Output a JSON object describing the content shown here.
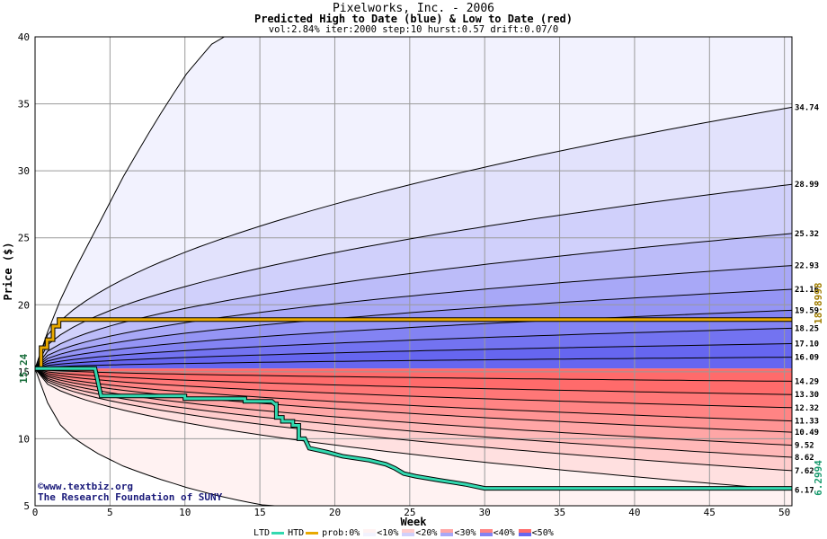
{
  "chart_data": {
    "type": "area",
    "title": "Pixelworks, Inc. - 2006",
    "subtitle": "Predicted High to Date (blue) &  Low to Date (red)",
    "params": "vol:2.84% iter:2000 step:10 hurst:0.57 drift:0.07/0",
    "xlabel": "Week",
    "ylabel": "Price ($)",
    "xlim": [
      0,
      50.5
    ],
    "ylim": [
      5,
      40
    ],
    "x_ticks": [
      0,
      5,
      10,
      15,
      20,
      25,
      30,
      35,
      40,
      45,
      50
    ],
    "y_ticks": [
      5,
      10,
      15,
      20,
      25,
      30,
      35,
      40
    ],
    "grid": true,
    "start_price": 15.24,
    "start_price_label": "15.24",
    "watermark": [
      "©www.textbiz.org",
      "The Research Foundation of SUNY"
    ],
    "high_quantiles": [
      {
        "label": "34.74",
        "end": 34.74
      },
      {
        "label": "28.99",
        "end": 28.99
      },
      {
        "label": "25.32",
        "end": 25.32
      },
      {
        "label": "22.93",
        "end": 22.93
      },
      {
        "label": "21.16",
        "end": 21.16
      },
      {
        "label": "19.59",
        "end": 19.59
      },
      {
        "label": "18.25",
        "end": 18.25
      },
      {
        "label": "17.10",
        "end": 17.1
      },
      {
        "label": "16.09",
        "end": 16.09
      }
    ],
    "low_quantiles": [
      {
        "label": "14.29",
        "end": 14.29
      },
      {
        "label": "13.30",
        "end": 13.3
      },
      {
        "label": "12.32",
        "end": 12.32
      },
      {
        "label": "11.33",
        "end": 11.33
      },
      {
        "label": "10.49",
        "end": 10.49
      },
      {
        "label": "9.52",
        "end": 9.52
      },
      {
        "label": "8.62",
        "end": 8.62
      },
      {
        "label": "7.62",
        "end": 7.62
      },
      {
        "label": "6.17",
        "end": 6.17
      }
    ],
    "outer_high_band": {
      "x": [
        0,
        1,
        2,
        4,
        6,
        8,
        10,
        12.2
      ],
      "y": [
        15.24,
        18.5,
        21.2,
        25.5,
        29.8,
        33.6,
        37.1,
        40
      ]
    },
    "outer_low_band": {
      "x": [
        0,
        1,
        2,
        4,
        6,
        8,
        10,
        12,
        14,
        15.5
      ],
      "y": [
        15.24,
        12.2,
        10.5,
        9.0,
        7.9,
        7.1,
        6.4,
        5.8,
        5.3,
        5.0
      ]
    },
    "htd_series": {
      "name": "HTD",
      "value_label": "18.8998",
      "x": [
        0,
        0.4,
        0.4,
        0.8,
        0.8,
        1.2,
        1.2,
        1.6,
        1.6,
        50.5
      ],
      "y": [
        15.24,
        15.24,
        16.8,
        16.8,
        17.4,
        17.4,
        18.4,
        18.4,
        18.9,
        18.9
      ]
    },
    "ltd_series": {
      "name": "LTD",
      "value_label": "6.2994",
      "x": [
        0,
        4,
        4.4,
        4.4,
        10,
        10,
        14,
        14,
        15.8,
        16,
        16.1,
        16.1,
        16.5,
        16.5,
        17.2,
        17.2,
        17.6,
        17.6,
        18,
        18.3,
        18.3,
        19.5,
        19.5,
        20.5,
        20.5,
        22.3,
        22.3,
        23.4,
        23.4,
        24,
        24,
        24.6,
        24.6,
        25.4,
        25.4,
        27,
        27,
        28.7,
        28.7,
        30,
        30,
        50.5
      ],
      "y": [
        15.24,
        15.24,
        13.2,
        13.2,
        13.2,
        13.0,
        13.0,
        12.8,
        12.8,
        12.6,
        12.6,
        11.6,
        11.6,
        11.3,
        11.3,
        11.0,
        11.0,
        10.0,
        10.0,
        9.3,
        9.3,
        9.0,
        9.0,
        8.7,
        8.7,
        8.4,
        8.4,
        8.1,
        8.1,
        7.8,
        7.8,
        7.4,
        7.4,
        7.2,
        7.2,
        6.9,
        6.9,
        6.6,
        6.6,
        6.3,
        6.3,
        6.3
      ]
    },
    "legend": {
      "ltd_label": "LTD",
      "htd_label": "HTD",
      "prob_label": "prob:0%",
      "bins": [
        "<10%",
        "<20%",
        "<30%",
        "<40%",
        "<50%"
      ]
    },
    "colors": {
      "htd": "#e8a900",
      "ltd": "#33d9b0",
      "high_fill": [
        "#f2f2fe",
        "#e2e2fc",
        "#d0d0fb",
        "#bcbcf9",
        "#a8a8f7",
        "#9595f5",
        "#8383f3",
        "#7373f1",
        "#6666f0"
      ],
      "low_fill": [
        "#fff2f2",
        "#ffe0e0",
        "#ffcccc",
        "#ffb8b8",
        "#ffa6a6",
        "#ff9494",
        "#ff8484",
        "#ff7777",
        "#ff6b6b"
      ],
      "high_label": "#a07d00",
      "low_label": "#1a9a6e",
      "start_label": "#1a6e3c"
    }
  }
}
